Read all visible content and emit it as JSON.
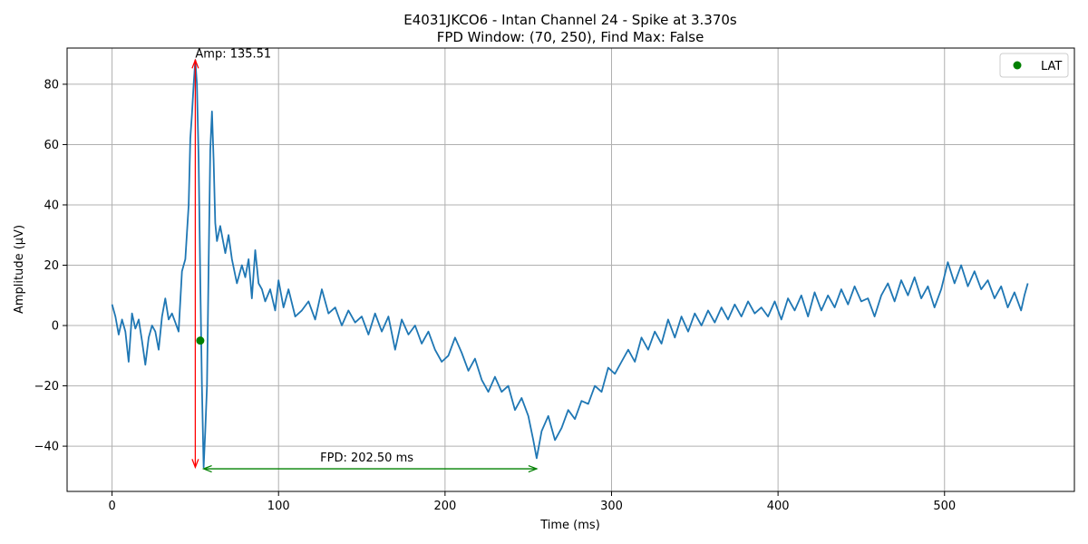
{
  "chart_data": {
    "type": "line",
    "title": "E4031JKCO6 - Intan Channel 24 - Spike at 3.370s",
    "subtitle": "FPD Window: (70, 250), Find Max: False",
    "xlabel": "Time (ms)",
    "ylabel": "Amplitude (µV)",
    "xlim": [
      -27,
      578
    ],
    "ylim": [
      -55,
      92
    ],
    "x_ticks": [
      0,
      100,
      200,
      300,
      400,
      500
    ],
    "y_ticks": [
      -40,
      -20,
      0,
      20,
      40,
      60,
      80
    ],
    "grid": true,
    "legend": {
      "position": "top-right",
      "entries": [
        {
          "label": "LAT",
          "color": "#008000",
          "marker": "circle"
        }
      ]
    },
    "series": [
      {
        "color": "#1f77b4",
        "points": [
          [
            0,
            7
          ],
          [
            2,
            3
          ],
          [
            4,
            -3
          ],
          [
            6,
            2
          ],
          [
            8,
            -2
          ],
          [
            10,
            -12
          ],
          [
            12,
            4
          ],
          [
            14,
            -1
          ],
          [
            16,
            2
          ],
          [
            18,
            -5
          ],
          [
            20,
            -13
          ],
          [
            22,
            -4
          ],
          [
            24,
            0
          ],
          [
            26,
            -2
          ],
          [
            28,
            -8
          ],
          [
            30,
            3
          ],
          [
            32,
            9
          ],
          [
            34,
            2
          ],
          [
            36,
            4
          ],
          [
            38,
            1
          ],
          [
            40,
            -2
          ],
          [
            42,
            18
          ],
          [
            44,
            22
          ],
          [
            46,
            40
          ],
          [
            47,
            62
          ],
          [
            48,
            70
          ],
          [
            49,
            80
          ],
          [
            50,
            88
          ],
          [
            51,
            80
          ],
          [
            52,
            55
          ],
          [
            53,
            15
          ],
          [
            54,
            -20
          ],
          [
            55,
            -47
          ],
          [
            56,
            -35
          ],
          [
            57,
            -20
          ],
          [
            58,
            20
          ],
          [
            59,
            58
          ],
          [
            60,
            71
          ],
          [
            61,
            55
          ],
          [
            62,
            34
          ],
          [
            63,
            28
          ],
          [
            65,
            33
          ],
          [
            68,
            24
          ],
          [
            70,
            30
          ],
          [
            72,
            22
          ],
          [
            75,
            14
          ],
          [
            78,
            20
          ],
          [
            80,
            16
          ],
          [
            82,
            22
          ],
          [
            84,
            9
          ],
          [
            86,
            25
          ],
          [
            88,
            14
          ],
          [
            90,
            12
          ],
          [
            92,
            8
          ],
          [
            95,
            12
          ],
          [
            98,
            5
          ],
          [
            100,
            15
          ],
          [
            103,
            6
          ],
          [
            106,
            12
          ],
          [
            110,
            3
          ],
          [
            114,
            5
          ],
          [
            118,
            8
          ],
          [
            122,
            2
          ],
          [
            126,
            12
          ],
          [
            130,
            4
          ],
          [
            134,
            6
          ],
          [
            138,
            0
          ],
          [
            142,
            5
          ],
          [
            146,
            1
          ],
          [
            150,
            3
          ],
          [
            154,
            -3
          ],
          [
            158,
            4
          ],
          [
            162,
            -2
          ],
          [
            166,
            3
          ],
          [
            170,
            -8
          ],
          [
            174,
            2
          ],
          [
            178,
            -3
          ],
          [
            182,
            0
          ],
          [
            186,
            -6
          ],
          [
            190,
            -2
          ],
          [
            194,
            -8
          ],
          [
            198,
            -12
          ],
          [
            202,
            -10
          ],
          [
            206,
            -4
          ],
          [
            210,
            -9
          ],
          [
            214,
            -15
          ],
          [
            218,
            -11
          ],
          [
            222,
            -18
          ],
          [
            226,
            -22
          ],
          [
            230,
            -17
          ],
          [
            234,
            -22
          ],
          [
            238,
            -20
          ],
          [
            242,
            -28
          ],
          [
            246,
            -24
          ],
          [
            250,
            -30
          ],
          [
            253,
            -38
          ],
          [
            255,
            -44
          ],
          [
            258,
            -35
          ],
          [
            262,
            -30
          ],
          [
            266,
            -38
          ],
          [
            270,
            -34
          ],
          [
            274,
            -28
          ],
          [
            278,
            -31
          ],
          [
            282,
            -25
          ],
          [
            286,
            -26
          ],
          [
            290,
            -20
          ],
          [
            294,
            -22
          ],
          [
            298,
            -14
          ],
          [
            302,
            -16
          ],
          [
            306,
            -12
          ],
          [
            310,
            -8
          ],
          [
            314,
            -12
          ],
          [
            318,
            -4
          ],
          [
            322,
            -8
          ],
          [
            326,
            -2
          ],
          [
            330,
            -6
          ],
          [
            334,
            2
          ],
          [
            338,
            -4
          ],
          [
            342,
            3
          ],
          [
            346,
            -2
          ],
          [
            350,
            4
          ],
          [
            354,
            0
          ],
          [
            358,
            5
          ],
          [
            362,
            1
          ],
          [
            366,
            6
          ],
          [
            370,
            2
          ],
          [
            374,
            7
          ],
          [
            378,
            3
          ],
          [
            382,
            8
          ],
          [
            386,
            4
          ],
          [
            390,
            6
          ],
          [
            394,
            3
          ],
          [
            398,
            8
          ],
          [
            402,
            2
          ],
          [
            406,
            9
          ],
          [
            410,
            5
          ],
          [
            414,
            10
          ],
          [
            418,
            3
          ],
          [
            422,
            11
          ],
          [
            426,
            5
          ],
          [
            430,
            10
          ],
          [
            434,
            6
          ],
          [
            438,
            12
          ],
          [
            442,
            7
          ],
          [
            446,
            13
          ],
          [
            450,
            8
          ],
          [
            454,
            9
          ],
          [
            458,
            3
          ],
          [
            462,
            10
          ],
          [
            466,
            14
          ],
          [
            470,
            8
          ],
          [
            474,
            15
          ],
          [
            478,
            10
          ],
          [
            482,
            16
          ],
          [
            486,
            9
          ],
          [
            490,
            13
          ],
          [
            494,
            6
          ],
          [
            498,
            12
          ],
          [
            502,
            21
          ],
          [
            506,
            14
          ],
          [
            510,
            20
          ],
          [
            514,
            13
          ],
          [
            518,
            18
          ],
          [
            522,
            12
          ],
          [
            526,
            15
          ],
          [
            530,
            9
          ],
          [
            534,
            13
          ],
          [
            538,
            6
          ],
          [
            542,
            11
          ],
          [
            546,
            5
          ],
          [
            548,
            10
          ],
          [
            550,
            14
          ]
        ]
      }
    ],
    "markers": [
      {
        "label": "LAT",
        "x": 53,
        "y": -5,
        "color": "#008000"
      }
    ],
    "annotations": [
      {
        "text": "Amp: 135.51",
        "color": "#ff0000",
        "type": "vertical-arrow",
        "x": 50,
        "y1": -47,
        "y2": 88,
        "text_x": 50,
        "text_y": 88
      },
      {
        "text": "FPD: 202.50 ms",
        "color": "#008000",
        "type": "horizontal-arrow",
        "y": -47.5,
        "x1": 55,
        "x2": 255,
        "text_x": 125,
        "text_y": -46
      }
    ]
  }
}
